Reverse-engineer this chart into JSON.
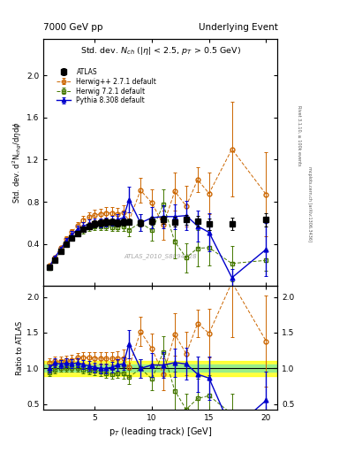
{
  "title_left": "7000 GeV pp",
  "title_right": "Underlying Event",
  "right_label1": "Rivet 3.1.10, ≥ 100k events",
  "right_label2": "mcplots.cern.ch [arXiv:1306.3436]",
  "annotation": "ATLAS_2010_S8894728",
  "ylabel_main": "Std. dev. d$^{2}$N$_{chg}$/d$\\eta$d$\\phi$",
  "ylabel_ratio": "Ratio to ATLAS",
  "xlabel": "p$_{T}$ (leading track) [GeV]",
  "ylim_main": [
    0.0,
    2.35
  ],
  "ylim_ratio": [
    0.42,
    2.15
  ],
  "yticks_main": [
    0.4,
    0.8,
    1.2,
    1.6,
    2.0
  ],
  "yticks_ratio": [
    0.5,
    1.0,
    1.5,
    2.0
  ],
  "xlim": [
    0.5,
    21.0
  ],
  "xticks": [
    5,
    10,
    15,
    20
  ],
  "atlas_x": [
    1.0,
    1.5,
    2.0,
    2.5,
    3.0,
    3.5,
    4.0,
    4.5,
    5.0,
    5.5,
    6.0,
    6.5,
    7.0,
    7.5,
    8.0,
    9.0,
    10.0,
    11.0,
    12.0,
    13.0,
    14.0,
    15.0,
    17.0,
    20.0
  ],
  "atlas_y": [
    0.18,
    0.25,
    0.33,
    0.4,
    0.46,
    0.5,
    0.54,
    0.57,
    0.59,
    0.6,
    0.61,
    0.61,
    0.6,
    0.61,
    0.61,
    0.6,
    0.62,
    0.63,
    0.61,
    0.63,
    0.62,
    0.59,
    0.59,
    0.63
  ],
  "atlas_yerr": [
    0.015,
    0.018,
    0.02,
    0.022,
    0.025,
    0.027,
    0.028,
    0.03,
    0.032,
    0.03,
    0.032,
    0.03,
    0.031,
    0.032,
    0.03,
    0.032,
    0.038,
    0.04,
    0.045,
    0.048,
    0.05,
    0.055,
    0.06,
    0.065
  ],
  "hpp_x": [
    1.0,
    1.5,
    2.0,
    2.5,
    3.0,
    3.5,
    4.0,
    4.5,
    5.0,
    5.5,
    6.0,
    6.5,
    7.0,
    7.5,
    8.0,
    9.0,
    10.0,
    11.0,
    12.0,
    13.0,
    14.0,
    15.0,
    17.0,
    20.0
  ],
  "hpp_y": [
    0.195,
    0.275,
    0.365,
    0.445,
    0.515,
    0.575,
    0.625,
    0.655,
    0.675,
    0.685,
    0.695,
    0.695,
    0.685,
    0.7,
    0.62,
    0.91,
    0.79,
    0.58,
    0.9,
    0.76,
    1.01,
    0.88,
    1.3,
    0.87
  ],
  "hpp_yerr": [
    0.01,
    0.015,
    0.02,
    0.025,
    0.03,
    0.035,
    0.04,
    0.045,
    0.05,
    0.05,
    0.055,
    0.055,
    0.06,
    0.07,
    0.08,
    0.12,
    0.13,
    0.14,
    0.18,
    0.19,
    0.12,
    0.2,
    0.45,
    0.4
  ],
  "h721_x": [
    1.0,
    1.5,
    2.0,
    2.5,
    3.0,
    3.5,
    4.0,
    4.5,
    5.0,
    5.5,
    6.0,
    6.5,
    7.0,
    7.5,
    8.0,
    9.0,
    10.0,
    11.0,
    12.0,
    13.0,
    14.0,
    15.0,
    17.0,
    20.0
  ],
  "h721_y": [
    0.17,
    0.245,
    0.33,
    0.4,
    0.46,
    0.5,
    0.53,
    0.555,
    0.57,
    0.57,
    0.57,
    0.56,
    0.56,
    0.57,
    0.535,
    0.6,
    0.53,
    0.775,
    0.42,
    0.27,
    0.36,
    0.365,
    0.215,
    0.245
  ],
  "h721_yerr": [
    0.01,
    0.012,
    0.015,
    0.018,
    0.02,
    0.025,
    0.03,
    0.03,
    0.035,
    0.035,
    0.04,
    0.04,
    0.04,
    0.05,
    0.06,
    0.08,
    0.1,
    0.14,
    0.16,
    0.14,
    0.17,
    0.17,
    0.17,
    0.1
  ],
  "py_x": [
    1.0,
    1.5,
    2.0,
    2.5,
    3.0,
    3.5,
    4.0,
    4.5,
    5.0,
    5.5,
    6.0,
    6.5,
    7.0,
    7.5,
    8.0,
    9.0,
    10.0,
    11.0,
    12.0,
    13.0,
    14.0,
    15.0,
    17.0,
    20.0
  ],
  "py_y": [
    0.18,
    0.27,
    0.35,
    0.43,
    0.49,
    0.54,
    0.57,
    0.59,
    0.6,
    0.6,
    0.61,
    0.62,
    0.63,
    0.65,
    0.82,
    0.6,
    0.65,
    0.66,
    0.66,
    0.67,
    0.57,
    0.51,
    0.08,
    0.35
  ],
  "py_yerr": [
    0.01,
    0.015,
    0.02,
    0.025,
    0.03,
    0.033,
    0.036,
    0.04,
    0.04,
    0.042,
    0.044,
    0.045,
    0.05,
    0.055,
    0.12,
    0.08,
    0.1,
    0.11,
    0.12,
    0.14,
    0.15,
    0.18,
    0.08,
    0.25
  ],
  "c_atlas": "#000000",
  "c_hpp": "#cc6600",
  "c_h721": "#447700",
  "c_py": "#0000cc",
  "band_yellow": 0.1,
  "band_green": 0.05
}
